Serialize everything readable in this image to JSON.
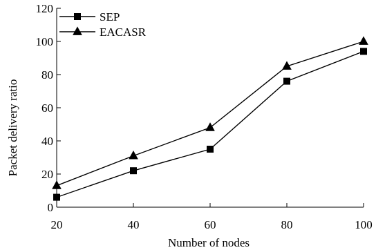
{
  "chart_data": {
    "type": "line",
    "xlabel": "Number of nodes",
    "ylabel": "Packet delivery ratio",
    "x": [
      20,
      40,
      60,
      80,
      100
    ],
    "xlim": [
      20,
      100
    ],
    "ylim": [
      0,
      120
    ],
    "x_ticks": [
      20,
      40,
      60,
      80,
      100
    ],
    "y_ticks": [
      0,
      20,
      40,
      60,
      80,
      100,
      120
    ],
    "grid": false,
    "legend_position": "top-left",
    "series": [
      {
        "name": "SEP",
        "marker": "square",
        "color": "#000000",
        "values": [
          6,
          22,
          35,
          76,
          94
        ]
      },
      {
        "name": "EACASR",
        "marker": "triangle",
        "color": "#000000",
        "values": [
          13,
          31,
          48,
          85,
          100
        ]
      }
    ]
  }
}
